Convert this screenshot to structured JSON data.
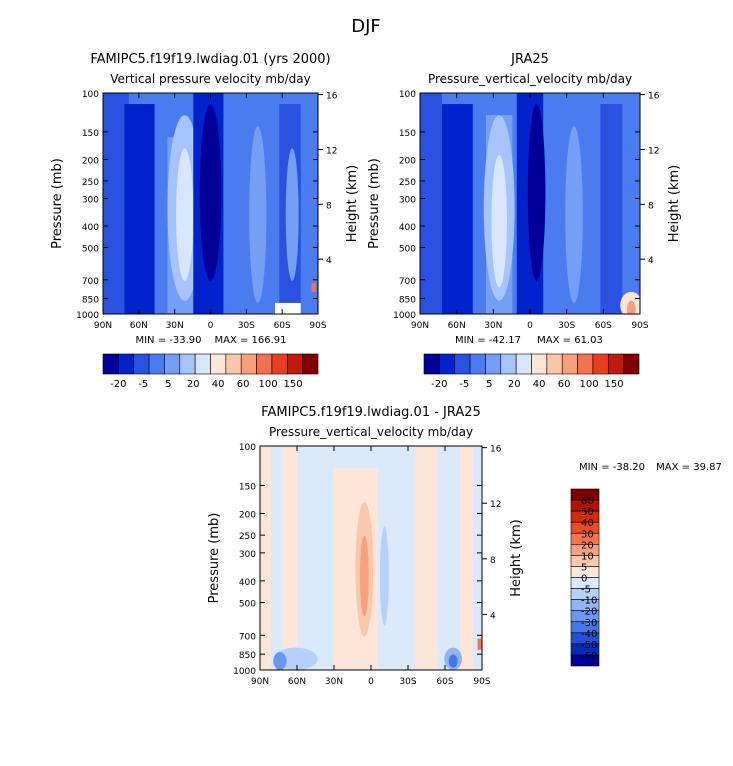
{
  "page_title": "DJF",
  "chart_data": [
    {
      "type": "heatmap",
      "id": "model",
      "title": "FAMIPC5.f19f19.lwdiag.01 (yrs 2000)",
      "subtitle": "Vertical pressure velocity mb/day",
      "xlabel": "",
      "ylabel": "Pressure (mb)",
      "ylabel_right": "Height (km)",
      "x_ticks": [
        "90N",
        "60N",
        "30N",
        "0",
        "30S",
        "60S",
        "90S"
      ],
      "y_ticks": [
        "100",
        "150",
        "200",
        "250",
        "300",
        "400",
        "500",
        "700",
        "850",
        "1000"
      ],
      "y_ticks_right": [
        "16",
        "12",
        "8",
        "4"
      ],
      "ylim": [
        1000,
        100
      ],
      "xlim": [
        90,
        -90
      ],
      "min_label": "MIN = -33.90",
      "max_label": "MAX = 166.91",
      "min": -33.9,
      "max": 166.91,
      "colorbar_levels": [
        "-20",
        "-5",
        "5",
        "20",
        "40",
        "60",
        "100",
        "150"
      ],
      "colors": [
        "#000099",
        "#0022cc",
        "#2a52e0",
        "#4a7cef",
        "#749ff5",
        "#a6c4fa",
        "#d7e6fd",
        "#fde5d7",
        "#fbc5a9",
        "#f8a07c",
        "#f47150",
        "#e8401f",
        "#c01a0e",
        "#800000"
      ]
    },
    {
      "type": "heatmap",
      "id": "obs",
      "title": "JRA25",
      "subtitle": "Pressure_vertical_velocity mb/day",
      "xlabel": "",
      "ylabel": "Pressure (mb)",
      "ylabel_right": "Height (km)",
      "x_ticks": [
        "90N",
        "60N",
        "30N",
        "0",
        "30S",
        "60S",
        "90S"
      ],
      "y_ticks": [
        "100",
        "150",
        "200",
        "250",
        "300",
        "400",
        "500",
        "700",
        "850",
        "1000"
      ],
      "y_ticks_right": [
        "16",
        "12",
        "8",
        "4"
      ],
      "ylim": [
        1000,
        100
      ],
      "xlim": [
        90,
        -90
      ],
      "min_label": "MIN = -42.17",
      "max_label": "MAX = 61.03",
      "min": -42.17,
      "max": 61.03,
      "colorbar_levels": [
        "-20",
        "-5",
        "5",
        "20",
        "40",
        "60",
        "100",
        "150"
      ]
    },
    {
      "type": "heatmap",
      "id": "diff",
      "title": "FAMIPC5.f19f19.lwdiag.01 - JRA25",
      "subtitle": "Pressure_vertical_velocity mb/day",
      "xlabel": "",
      "ylabel": "Pressure (mb)",
      "ylabel_right": "Height (km)",
      "x_ticks": [
        "90N",
        "60N",
        "30N",
        "0",
        "30S",
        "60S",
        "90S"
      ],
      "y_ticks": [
        "100",
        "150",
        "200",
        "250",
        "300",
        "400",
        "500",
        "700",
        "850",
        "1000"
      ],
      "y_ticks_right": [
        "16",
        "12",
        "8",
        "4"
      ],
      "ylim": [
        1000,
        100
      ],
      "xlim": [
        90,
        -90
      ],
      "min_label": "MIN = -38.20",
      "max_label": "MAX = 39.87",
      "min": -38.2,
      "max": 39.87,
      "colorbar_levels": [
        "60",
        "50",
        "40",
        "30",
        "20",
        "10",
        "5",
        "0",
        "-5",
        "-10",
        "-20",
        "-30",
        "-40",
        "-50",
        "-60"
      ],
      "colors": [
        "#800000",
        "#b01208",
        "#d32a10",
        "#ec4a25",
        "#f57552",
        "#f9a07e",
        "#fbc8ad",
        "#fde6d8",
        "#dbe9fd",
        "#b4d0fb",
        "#8fb5f6",
        "#6a98f0",
        "#4676e6",
        "#2550d4",
        "#0a2cb8",
        "#000099"
      ]
    }
  ]
}
